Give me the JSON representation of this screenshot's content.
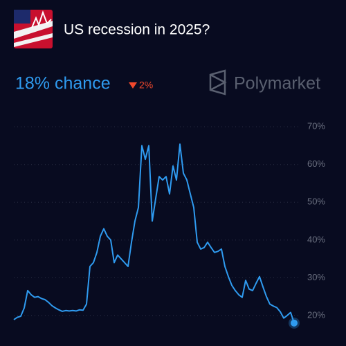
{
  "chart_data": {
    "type": "line",
    "title": "US recession in 2025?",
    "headline": "18% chance",
    "change": "2%",
    "brand": "Polymarket",
    "color": "#2f9bf0",
    "grid": true,
    "ylim": [
      16.5,
      71.5
    ],
    "yticks": [
      {
        "value": 70,
        "label": "70%"
      },
      {
        "value": 60,
        "label": "60%"
      },
      {
        "value": 50,
        "label": "50%"
      },
      {
        "value": 40,
        "label": "40%"
      },
      {
        "value": 30,
        "label": "30%"
      },
      {
        "value": 20,
        "label": "20%"
      }
    ],
    "values": [
      18.9,
      19.5,
      19.8,
      22,
      26.6,
      25.5,
      24.8,
      25,
      24.5,
      24.2,
      23.5,
      22.6,
      22,
      21.5,
      21.1,
      21.3,
      21.2,
      21.3,
      21.2,
      21.5,
      21.4,
      23,
      33,
      34,
      36.7,
      41,
      43,
      41,
      40,
      34,
      36,
      35,
      34,
      33,
      39.4,
      45,
      48.6,
      65,
      61.4,
      65,
      45,
      51,
      56.8,
      55.9,
      56.8,
      52.2,
      59.6,
      55.9,
      65.4,
      57.7,
      55.9,
      52.2,
      48.6,
      39.4,
      37.6,
      38,
      39.4,
      38,
      36.7,
      37,
      37.6,
      33,
      30.3,
      28,
      26.6,
      25.5,
      24.8,
      29.3,
      27,
      26.6,
      28.5,
      30.3,
      27.6,
      25,
      23,
      22.5,
      22.1,
      21,
      19.3,
      20,
      20.8,
      18
    ]
  }
}
